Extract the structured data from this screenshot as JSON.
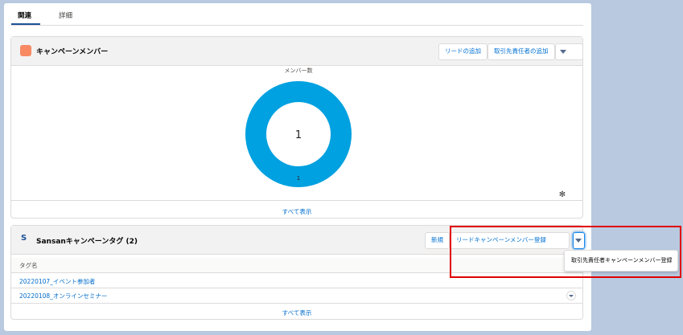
{
  "tabs": [
    "関連",
    "詳細"
  ],
  "campaign_members": {
    "title": "キャンペーンメンバー",
    "actions": [
      "リードの追加",
      "取引先責任者の追加"
    ],
    "chart": {
      "type": "donut",
      "title": "メンバー数",
      "values": [
        1
      ],
      "color": "#00a1e0",
      "total": 1
    },
    "view_all": "すべて表示"
  },
  "sansan_tags": {
    "title": "Sansanキャンペーンタグ (2)",
    "actions": [
      "新規",
      "リードキャンペーンメンバー登録"
    ],
    "column": "タグ名",
    "rows": [
      "20220107_イベント参加者",
      "20220108_オンラインセミナー"
    ],
    "view_all": "すべて表示",
    "menu": [
      "取引先責任者キャンペーンメンバー登録"
    ]
  }
}
